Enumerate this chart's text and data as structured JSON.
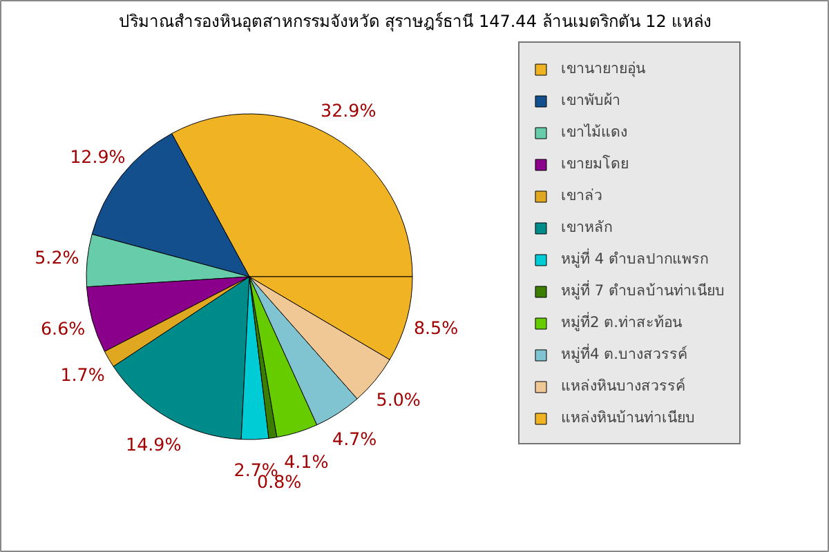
{
  "chart_data": {
    "type": "pie",
    "title": "ปริมาณสำรองหินอุตสาหกรรมจังหวัด สุราษฎร์ธานี 147.44 ล้านเมตริกตัน 12 แหล่ง",
    "categories": [
      "เขานายายอุ่น",
      "เขาพับผ้า",
      "เขาไม้แดง",
      "เขายมโดย",
      "เขาล่ว",
      "เขาหลัก",
      "หมู่ที่ 4 ตำบลปากแพรก",
      "หมู่ที่ 7 ตำบลบ้านท่าเนียบ",
      "หมู่ที่2 ต.ท่าสะท้อน",
      "หมู่ที่4 ต.บางสวรรค์",
      "แหล่งหินบางสวรรค์",
      "แหล่งหินบ้านท่าเนียบ"
    ],
    "values": [
      32.9,
      12.9,
      5.2,
      6.6,
      1.7,
      14.9,
      2.7,
      0.8,
      4.1,
      4.7,
      5.0,
      8.5
    ],
    "value_labels": [
      "32.9%",
      "12.9%",
      "5.2%",
      "6.6%",
      "1.7%",
      "14.9%",
      "2.7%",
      "0.8%",
      "4.1%",
      "4.7%",
      "5.0%",
      "8.5%"
    ],
    "colors": [
      "#f0b323",
      "#134f8c",
      "#66ccaa",
      "#8b008b",
      "#e0a820",
      "#008b8b",
      "#00ccd6",
      "#3a7d00",
      "#66cc00",
      "#7fc4d0",
      "#f0c896",
      "#f0b323"
    ],
    "legend": "right"
  }
}
